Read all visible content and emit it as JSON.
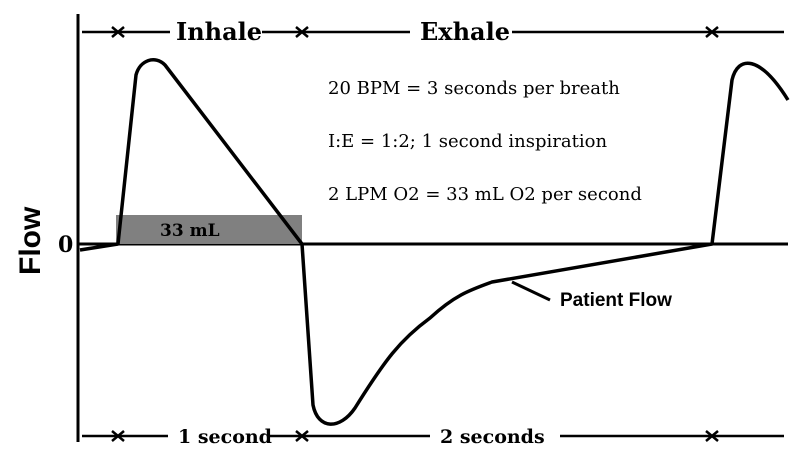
{
  "diagram": {
    "top_labels": {
      "inhale": "Inhale",
      "exhale": "Exhale"
    },
    "bottom_labels": {
      "inhale_duration": "1 second",
      "exhale_duration": "2 seconds"
    },
    "y_axis": {
      "label": "Flow",
      "zero_label": "0"
    },
    "notes": [
      "20 BPM = 3 seconds per breath",
      "I:E = 1:2; 1 second inspiration",
      "2 LPM O2 = 33 mL O2 per second"
    ],
    "volume_box_label": "33 mL",
    "curve_label": "Patient Flow",
    "colors": {
      "stroke": "#000000",
      "volume_box": "#808080",
      "background": "#ffffff"
    }
  }
}
